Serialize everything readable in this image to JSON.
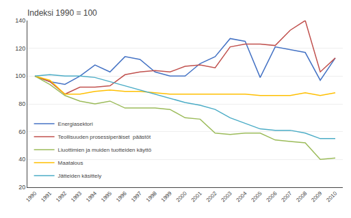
{
  "chart_data": {
    "type": "line",
    "title": "Indeksi 1990 = 100",
    "x": [
      1990,
      1991,
      1992,
      1993,
      1994,
      1995,
      1996,
      1997,
      1998,
      1999,
      2000,
      2001,
      2002,
      2003,
      2004,
      2005,
      2006,
      2007,
      2008,
      2009,
      2010
    ],
    "series": [
      {
        "name": "Energiasektori",
        "color": "#4472C4",
        "values": [
          100,
          96,
          94,
          100,
          108,
          103,
          114,
          112,
          103,
          100,
          100,
          109,
          114,
          127,
          125,
          99,
          121,
          119,
          117,
          97,
          113
        ]
      },
      {
        "name": "Teollisuuden prosessiperäiset  päästöt",
        "color": "#C0504D",
        "values": [
          100,
          96,
          87,
          92,
          92,
          93,
          101,
          103,
          104,
          103,
          107,
          108,
          106,
          121,
          123,
          123,
          122,
          133,
          140,
          103,
          113
        ]
      },
      {
        "name": "Liuottimien ja muiden tuotteiden käyttö",
        "color": "#9BBB59",
        "values": [
          100,
          94,
          86,
          82,
          80,
          82,
          77,
          77,
          77,
          76,
          70,
          69,
          59,
          58,
          59,
          59,
          54,
          53,
          52,
          40,
          41
        ]
      },
      {
        "name": "Maatalous",
        "color": "#FFBF00",
        "values": [
          100,
          97,
          87,
          87,
          89,
          90,
          89,
          89,
          88,
          87,
          87,
          87,
          87,
          87,
          87,
          86,
          86,
          86,
          88,
          86,
          88
        ]
      },
      {
        "name": "Jätteiden käsittely",
        "color": "#4BACC6",
        "values": [
          100,
          101,
          100,
          100,
          99,
          96,
          93,
          90,
          87,
          84,
          81,
          79,
          76,
          70,
          66,
          62,
          61,
          61,
          59,
          55,
          55
        ]
      }
    ],
    "xlim": [
      1989.5,
      2010.5
    ],
    "xticks": [
      1990,
      1991,
      1992,
      1993,
      1994,
      1995,
      1996,
      1997,
      1998,
      1999,
      2000,
      2001,
      2002,
      2003,
      2004,
      2005,
      2006,
      2007,
      2008,
      2009,
      2010
    ],
    "ylim": [
      20,
      140
    ],
    "yticks": [
      20,
      40,
      60,
      80,
      100,
      120,
      140
    ],
    "grid": true,
    "legend": "lower left"
  }
}
